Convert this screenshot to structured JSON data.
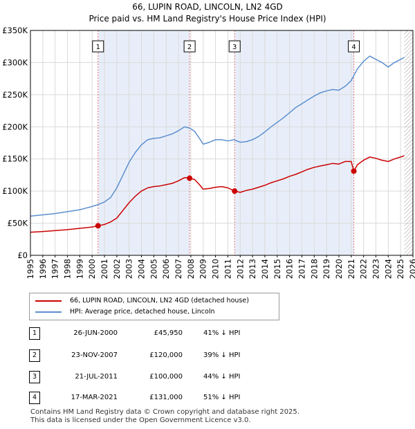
{
  "header": {
    "title": "66, LUPIN ROAD, LINCOLN, LN2 4GD",
    "subtitle": "Price paid vs. HM Land Registry's House Price Index (HPI)"
  },
  "legend": {
    "property_label": "66, LUPIN ROAD, LINCOLN, LN2 4GD (detached house)",
    "hpi_label": "HPI: Average price, detached house, Lincoln"
  },
  "transactions": [
    {
      "num": "1",
      "date": "26-JUN-2000",
      "price": "£45,950",
      "hpi": "41% ↓ HPI"
    },
    {
      "num": "2",
      "date": "23-NOV-2007",
      "price": "£120,000",
      "hpi": "39% ↓ HPI"
    },
    {
      "num": "3",
      "date": "21-JUL-2011",
      "price": "£100,000",
      "hpi": "44% ↓ HPI"
    },
    {
      "num": "4",
      "date": "17-MAR-2021",
      "price": "£131,000",
      "hpi": "51% ↓ HPI"
    }
  ],
  "footer": {
    "line1": "Contains HM Land Registry data © Crown copyright and database right 2025.",
    "line2": "This data is licensed under the Open Government Licence v3.0."
  },
  "chart_data": {
    "type": "line",
    "title": "66, LUPIN ROAD, LINCOLN, LN2 4GD",
    "subtitle": "Price paid vs. HM Land Registry's House Price Index (HPI)",
    "xlabel": "",
    "ylabel": "",
    "xlim": [
      1995,
      2026
    ],
    "ylim": [
      0,
      350000
    ],
    "x_ticks": [
      1995,
      1996,
      1997,
      1998,
      1999,
      2000,
      2001,
      2002,
      2003,
      2004,
      2005,
      2006,
      2007,
      2008,
      2009,
      2010,
      2011,
      2012,
      2013,
      2014,
      2015,
      2016,
      2017,
      2018,
      2019,
      2020,
      2021,
      2022,
      2023,
      2024,
      2025,
      2026
    ],
    "y_ticks": [
      0,
      50000,
      100000,
      150000,
      200000,
      250000,
      300000,
      350000
    ],
    "y_tick_labels": [
      "£0",
      "£50K",
      "£100K",
      "£150K",
      "£200K",
      "£250K",
      "£300K",
      "£350K"
    ],
    "colors": {
      "property": "#cc0000",
      "hpi": "#5b8fcf",
      "shade": "#e8eef9",
      "marker_line": "#e07070",
      "grid": "#d9d9d9",
      "hatch": "#999999"
    },
    "shaded_ranges": [
      [
        2000.48,
        2007.9
      ],
      [
        2011.55,
        2021.21
      ]
    ],
    "future_hatch_from": 2025.3,
    "series": [
      {
        "name": "66, LUPIN ROAD, LINCOLN, LN2 4GD (detached house)",
        "points": [
          [
            1995.0,
            36000
          ],
          [
            1996.0,
            37000
          ],
          [
            1997.0,
            38500
          ],
          [
            1998.0,
            40000
          ],
          [
            1999.0,
            42000
          ],
          [
            2000.0,
            44000
          ],
          [
            2000.48,
            45950
          ],
          [
            2001.0,
            48000
          ],
          [
            2001.5,
            52000
          ],
          [
            2002.0,
            58000
          ],
          [
            2002.5,
            70000
          ],
          [
            2003.0,
            82000
          ],
          [
            2003.5,
            92000
          ],
          [
            2004.0,
            100000
          ],
          [
            2004.5,
            105000
          ],
          [
            2005.0,
            107000
          ],
          [
            2005.5,
            108000
          ],
          [
            2006.0,
            110000
          ],
          [
            2006.5,
            112000
          ],
          [
            2007.0,
            116000
          ],
          [
            2007.5,
            121000
          ],
          [
            2007.9,
            120000
          ],
          [
            2008.3,
            118000
          ],
          [
            2008.7,
            110000
          ],
          [
            2009.0,
            103000
          ],
          [
            2009.5,
            104000
          ],
          [
            2010.0,
            106000
          ],
          [
            2010.5,
            107000
          ],
          [
            2011.0,
            105000
          ],
          [
            2011.55,
            100000
          ],
          [
            2012.0,
            98000
          ],
          [
            2012.5,
            101000
          ],
          [
            2013.0,
            103000
          ],
          [
            2013.5,
            106000
          ],
          [
            2014.0,
            109000
          ],
          [
            2014.5,
            113000
          ],
          [
            2015.0,
            116000
          ],
          [
            2015.5,
            119000
          ],
          [
            2016.0,
            123000
          ],
          [
            2016.5,
            126000
          ],
          [
            2017.0,
            130000
          ],
          [
            2017.5,
            134000
          ],
          [
            2018.0,
            137000
          ],
          [
            2018.5,
            139000
          ],
          [
            2019.0,
            141000
          ],
          [
            2019.5,
            143000
          ],
          [
            2020.0,
            142000
          ],
          [
            2020.5,
            146000
          ],
          [
            2021.0,
            146000
          ],
          [
            2021.21,
            131000
          ],
          [
            2021.5,
            141000
          ],
          [
            2022.0,
            148000
          ],
          [
            2022.5,
            153000
          ],
          [
            2023.0,
            151000
          ],
          [
            2023.5,
            148000
          ],
          [
            2024.0,
            146000
          ],
          [
            2024.5,
            150000
          ],
          [
            2025.0,
            153000
          ],
          [
            2025.3,
            155000
          ]
        ]
      },
      {
        "name": "HPI: Average price, detached house, Lincoln",
        "points": [
          [
            1995.0,
            61000
          ],
          [
            1996.0,
            63000
          ],
          [
            1997.0,
            65000
          ],
          [
            1998.0,
            68000
          ],
          [
            1999.0,
            71000
          ],
          [
            2000.0,
            76000
          ],
          [
            2000.5,
            79000
          ],
          [
            2001.0,
            83000
          ],
          [
            2001.5,
            90000
          ],
          [
            2002.0,
            105000
          ],
          [
            2002.5,
            125000
          ],
          [
            2003.0,
            145000
          ],
          [
            2003.5,
            160000
          ],
          [
            2004.0,
            172000
          ],
          [
            2004.5,
            180000
          ],
          [
            2005.0,
            182000
          ],
          [
            2005.5,
            183000
          ],
          [
            2006.0,
            186000
          ],
          [
            2006.5,
            189000
          ],
          [
            2007.0,
            194000
          ],
          [
            2007.5,
            200000
          ],
          [
            2007.9,
            198000
          ],
          [
            2008.3,
            193000
          ],
          [
            2008.7,
            182000
          ],
          [
            2009.0,
            173000
          ],
          [
            2009.5,
            176000
          ],
          [
            2010.0,
            180000
          ],
          [
            2010.5,
            180000
          ],
          [
            2011.0,
            178000
          ],
          [
            2011.5,
            180000
          ],
          [
            2012.0,
            176000
          ],
          [
            2012.5,
            177000
          ],
          [
            2013.0,
            180000
          ],
          [
            2013.5,
            185000
          ],
          [
            2014.0,
            192000
          ],
          [
            2014.5,
            200000
          ],
          [
            2015.0,
            207000
          ],
          [
            2015.5,
            214000
          ],
          [
            2016.0,
            222000
          ],
          [
            2016.5,
            230000
          ],
          [
            2017.0,
            236000
          ],
          [
            2017.5,
            242000
          ],
          [
            2018.0,
            248000
          ],
          [
            2018.5,
            253000
          ],
          [
            2019.0,
            256000
          ],
          [
            2019.5,
            258000
          ],
          [
            2020.0,
            257000
          ],
          [
            2020.5,
            263000
          ],
          [
            2021.0,
            272000
          ],
          [
            2021.5,
            290000
          ],
          [
            2022.0,
            302000
          ],
          [
            2022.5,
            310000
          ],
          [
            2023.0,
            305000
          ],
          [
            2023.5,
            300000
          ],
          [
            2024.0,
            293000
          ],
          [
            2024.5,
            300000
          ],
          [
            2025.0,
            305000
          ],
          [
            2025.3,
            308000
          ]
        ]
      }
    ],
    "sale_markers": [
      {
        "label": "1",
        "x": 2000.48,
        "y": 45950
      },
      {
        "label": "2",
        "x": 2007.9,
        "y": 120000
      },
      {
        "label": "3",
        "x": 2011.55,
        "y": 100000
      },
      {
        "label": "4",
        "x": 2021.21,
        "y": 131000
      }
    ]
  }
}
